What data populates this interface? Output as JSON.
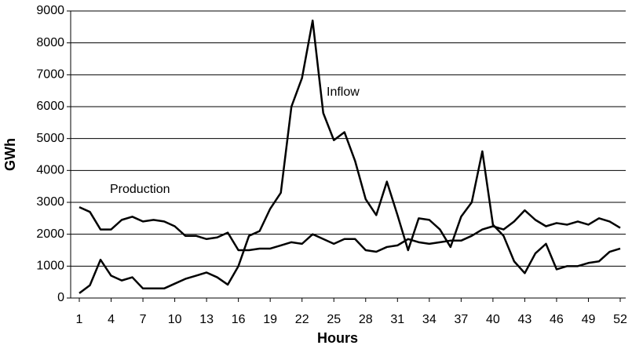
{
  "chart_data": {
    "type": "line",
    "xlabel": "Hours",
    "ylabel": "GWh",
    "x": [
      1,
      2,
      3,
      4,
      5,
      6,
      7,
      8,
      9,
      10,
      11,
      12,
      13,
      14,
      15,
      16,
      17,
      18,
      19,
      20,
      21,
      22,
      23,
      24,
      25,
      26,
      27,
      28,
      29,
      30,
      31,
      32,
      33,
      34,
      35,
      36,
      37,
      38,
      39,
      40,
      41,
      42,
      43,
      44,
      45,
      46,
      47,
      48,
      49,
      50,
      51,
      52
    ],
    "series": [
      {
        "name": "Inflow",
        "color": "#000000",
        "values": [
          150,
          400,
          1200,
          700,
          550,
          650,
          300,
          300,
          300,
          450,
          600,
          700,
          800,
          650,
          420,
          1000,
          1950,
          2100,
          2800,
          3300,
          6000,
          6900,
          8700,
          5800,
          4950,
          5200,
          4300,
          3100,
          2600,
          3650,
          2600,
          1500,
          2500,
          2450,
          2150,
          1600,
          2550,
          3000,
          4600,
          2300,
          1950,
          1150,
          780,
          1400,
          1700,
          900,
          1000,
          1000,
          1100,
          1150,
          1450,
          1550
        ]
      },
      {
        "name": "Production",
        "color": "#000000",
        "values": [
          2850,
          2700,
          2150,
          2150,
          2450,
          2550,
          2400,
          2450,
          2400,
          2250,
          1950,
          1950,
          1850,
          1900,
          2050,
          1500,
          1500,
          1550,
          1550,
          1650,
          1750,
          1700,
          2000,
          1850,
          1700,
          1850,
          1850,
          1500,
          1450,
          1600,
          1650,
          1850,
          1750,
          1700,
          1750,
          1800,
          1800,
          1950,
          2150,
          2250,
          2150,
          2400,
          2750,
          2450,
          2250,
          2350,
          2300,
          2400,
          2300,
          2500,
          2400,
          2200
        ]
      }
    ],
    "xlim": [
      1,
      52
    ],
    "xticks": [
      1,
      4,
      7,
      10,
      13,
      16,
      19,
      22,
      25,
      28,
      31,
      34,
      37,
      40,
      43,
      46,
      49,
      52
    ],
    "ylim": [
      0,
      9000
    ],
    "yticks": [
      0,
      1000,
      2000,
      3000,
      4000,
      5000,
      6000,
      7000,
      8000,
      9000
    ],
    "grid": true,
    "legend": "inline"
  }
}
